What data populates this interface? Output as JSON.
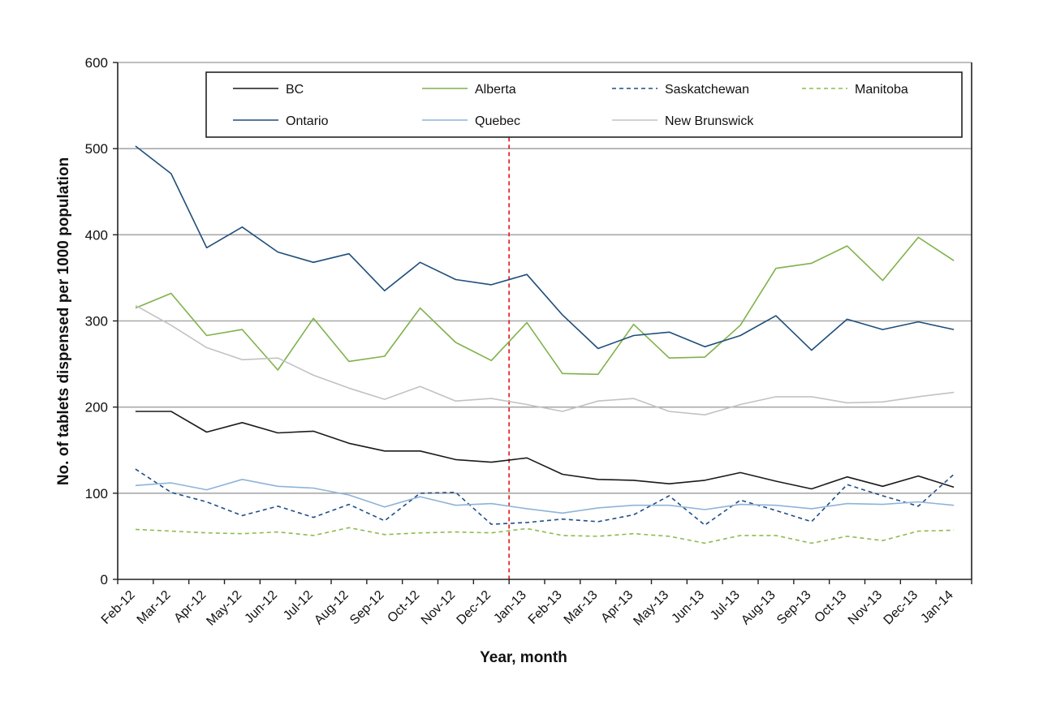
{
  "chart_data": {
    "type": "line",
    "title": "",
    "xlabel": "Year, month",
    "ylabel": "No. of tablets dispensed per 1000 population",
    "ylim": [
      0,
      600
    ],
    "yticks": [
      0,
      100,
      200,
      300,
      400,
      500,
      600
    ],
    "grid": "horizontal",
    "legend_position": "top, inside plot",
    "categories": [
      "Feb-12",
      "Mar-12",
      "Apr-12",
      "May-12",
      "Jun-12",
      "Jul-12",
      "Aug-12",
      "Sep-12",
      "Oct-12",
      "Nov-12",
      "Dec-12",
      "Jan-13",
      "Feb-13",
      "Mar-13",
      "Apr-13",
      "May-13",
      "Jun-13",
      "Jul-13",
      "Aug-13",
      "Sep-13",
      "Oct-13",
      "Nov-13",
      "Dec-13",
      "Jan-14"
    ],
    "reference_line": {
      "position_between": [
        "Dec-12",
        "Jan-13"
      ],
      "color": "#e8262d",
      "style": "dashed"
    },
    "series": [
      {
        "name": "BC",
        "color": "#1a1a1a",
        "dash": "solid",
        "values": [
          195,
          195,
          171,
          182,
          170,
          172,
          158,
          149,
          149,
          139,
          136,
          141,
          122,
          116,
          115,
          111,
          115,
          124,
          114,
          105,
          119,
          108,
          120,
          107
        ]
      },
      {
        "name": "Alberta",
        "color": "#7fb24a",
        "dash": "solid",
        "values": [
          315,
          332,
          283,
          290,
          243,
          303,
          253,
          259,
          315,
          275,
          254,
          298,
          239,
          238,
          296,
          257,
          258,
          295,
          361,
          367,
          387,
          347,
          397,
          370
        ]
      },
      {
        "name": "Saskatchewan",
        "color": "#1f4e87",
        "dash": "dashed",
        "values": [
          128,
          101,
          90,
          74,
          85,
          72,
          87,
          68,
          100,
          101,
          64,
          66,
          70,
          67,
          75,
          97,
          63,
          92,
          80,
          67,
          110,
          97,
          85,
          122
        ]
      },
      {
        "name": "Manitoba",
        "color": "#8dbb4f",
        "dash": "dashed",
        "values": [
          58,
          56,
          54,
          53,
          55,
          51,
          60,
          52,
          54,
          55,
          54,
          59,
          51,
          50,
          53,
          50,
          42,
          51,
          51,
          42,
          50,
          45,
          56,
          57
        ]
      },
      {
        "name": "Ontario",
        "color": "#1f4e7a",
        "dash": "solid",
        "values": [
          503,
          471,
          385,
          409,
          380,
          368,
          378,
          335,
          368,
          348,
          342,
          354,
          307,
          268,
          283,
          287,
          270,
          283,
          306,
          266,
          302,
          290,
          299,
          290
        ]
      },
      {
        "name": "Quebec",
        "color": "#8fb3d9",
        "dash": "solid",
        "values": [
          109,
          112,
          104,
          116,
          108,
          106,
          98,
          84,
          96,
          86,
          88,
          82,
          77,
          83,
          86,
          86,
          81,
          87,
          86,
          82,
          88,
          87,
          90,
          86
        ]
      },
      {
        "name": "New Brunswick",
        "color": "#c2c2c2",
        "dash": "solid",
        "values": [
          318,
          295,
          269,
          255,
          257,
          237,
          222,
          209,
          224,
          207,
          210,
          203,
          195,
          207,
          210,
          195,
          191,
          203,
          212,
          212,
          205,
          206,
          212,
          217
        ]
      }
    ]
  }
}
